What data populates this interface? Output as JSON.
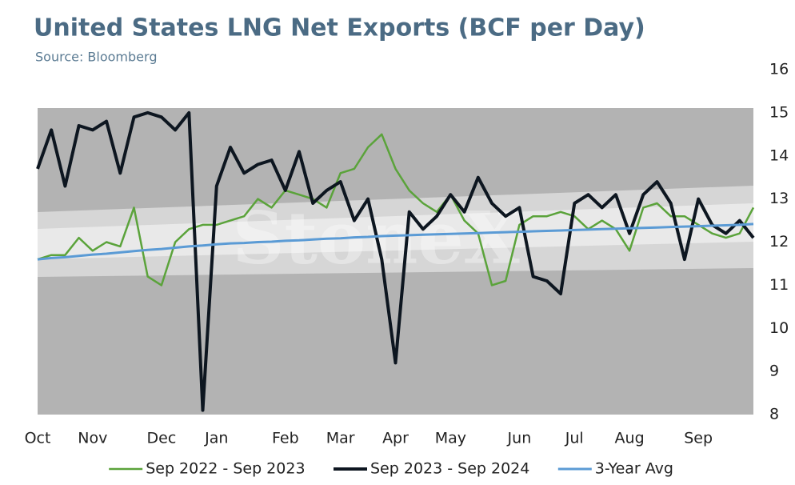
{
  "chart_data": {
    "type": "line",
    "title": "United States LNG Net Exports (BCF per Day)",
    "subtitle": "Source: Bloomberg",
    "watermark": "StoneX",
    "categories": [
      "Oct",
      null,
      null,
      null,
      "Nov",
      null,
      null,
      null,
      null,
      "Dec",
      null,
      null,
      null,
      "Jan",
      null,
      null,
      null,
      null,
      "Feb",
      null,
      null,
      null,
      "Mar",
      null,
      null,
      null,
      "Apr",
      null,
      null,
      null,
      "May",
      null,
      null,
      null,
      null,
      "Jun",
      null,
      null,
      null,
      "Jul",
      null,
      null,
      null,
      "Aug",
      null,
      null,
      null,
      null,
      "Sep",
      null,
      null,
      null,
      null
    ],
    "series": [
      {
        "name": "Sep 2022 - Sep 2023",
        "color": "#5ba33b",
        "width": 2.5,
        "values": [
          11.6,
          11.7,
          11.7,
          12.1,
          11.8,
          12.0,
          11.9,
          12.8,
          11.2,
          11.0,
          12.0,
          12.3,
          12.4,
          12.4,
          12.5,
          12.6,
          13.0,
          12.8,
          13.2,
          13.1,
          13.0,
          12.8,
          13.6,
          13.7,
          14.2,
          14.5,
          13.7,
          13.2,
          12.9,
          12.7,
          13.1,
          12.5,
          12.2,
          11.0,
          11.1,
          12.4,
          12.6,
          12.6,
          12.7,
          12.6,
          12.3,
          12.5,
          12.3,
          11.8,
          12.8,
          12.9,
          12.6,
          12.6,
          12.4,
          12.2,
          12.1,
          12.2,
          12.8
        ]
      },
      {
        "name": "Sep 2023 - Sep 2024",
        "color": "#0d1620",
        "width": 4,
        "values": [
          13.7,
          14.6,
          13.3,
          14.7,
          14.6,
          14.8,
          13.6,
          14.9,
          15.0,
          14.9,
          14.6,
          15.0,
          8.1,
          13.3,
          14.2,
          13.6,
          13.8,
          13.9,
          13.2,
          14.1,
          12.9,
          13.2,
          13.4,
          12.5,
          13.0,
          11.6,
          9.2,
          12.7,
          12.3,
          12.6,
          13.1,
          12.7,
          13.5,
          12.9,
          12.6,
          12.8,
          11.2,
          11.1,
          10.8,
          12.9,
          13.1,
          12.8,
          13.1,
          12.2,
          13.1,
          13.4,
          12.9,
          11.6,
          13.0,
          12.4,
          12.2,
          12.5,
          12.1
        ]
      },
      {
        "name": "3-Year Avg",
        "color": "#5b9bd5",
        "width": 3,
        "values": [
          11.6,
          11.63,
          11.65,
          11.68,
          11.71,
          11.73,
          11.76,
          11.79,
          11.82,
          11.84,
          11.87,
          11.9,
          11.92,
          11.95,
          11.97,
          11.98,
          12.0,
          12.01,
          12.03,
          12.04,
          12.06,
          12.08,
          12.09,
          12.11,
          12.12,
          12.14,
          12.15,
          12.16,
          12.17,
          12.18,
          12.19,
          12.2,
          12.21,
          12.22,
          12.23,
          12.24,
          12.25,
          12.26,
          12.27,
          12.28,
          12.29,
          12.3,
          12.31,
          12.32,
          12.33,
          12.34,
          12.35,
          12.36,
          12.37,
          12.38,
          12.39,
          12.4,
          12.42
        ]
      }
    ],
    "ylim": [
      8,
      16
    ],
    "yticks": [
      8,
      9,
      10,
      11,
      12,
      13,
      14,
      15,
      16
    ],
    "y_axis_side": "right",
    "grid": false,
    "legend": "bottom"
  }
}
